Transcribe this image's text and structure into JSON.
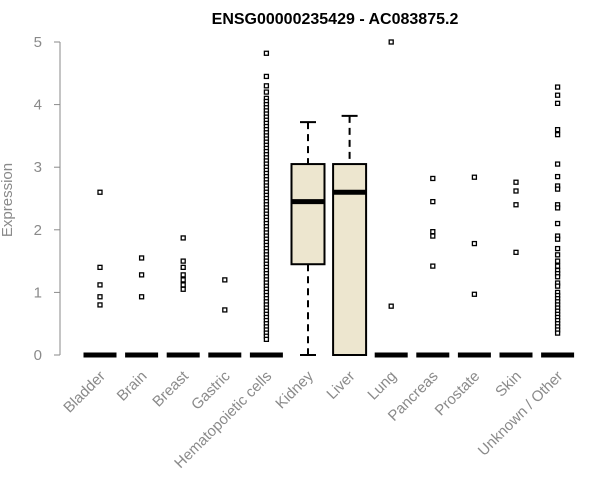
{
  "chart_data": {
    "type": "box",
    "title": "ENSG00000235429 - AC083875.2",
    "xlabel": "",
    "ylabel": "Expression",
    "ylim": [
      0,
      5
    ],
    "yticks": [
      0,
      1,
      2,
      3,
      4,
      5
    ],
    "categories": [
      "Bladder",
      "Brain",
      "Breast",
      "Gastric",
      "Hematopoietic cells",
      "Kidney",
      "Liver",
      "Lung",
      "Pancreas",
      "Prostate",
      "Skin",
      "Unknown / Other"
    ],
    "colors": {
      "box_fill": "#ede6cf",
      "stroke": "#000000",
      "axis": "#8a8a8a"
    },
    "boxes": [
      {
        "category": "Bladder",
        "q1": 0,
        "median": 0,
        "q3": 0,
        "whisker_low": 0,
        "whisker_high": 0,
        "outliers": [
          2.6,
          1.4,
          1.12,
          0.93,
          0.8
        ]
      },
      {
        "category": "Brain",
        "q1": 0,
        "median": 0,
        "q3": 0,
        "whisker_low": 0,
        "whisker_high": 0,
        "outliers": [
          1.55,
          1.28,
          0.93
        ]
      },
      {
        "category": "Breast",
        "q1": 0,
        "median": 0,
        "q3": 0,
        "whisker_low": 0,
        "whisker_high": 0,
        "outliers": [
          1.87,
          1.5,
          1.4,
          1.28,
          1.2,
          1.12,
          1.05
        ]
      },
      {
        "category": "Gastric",
        "q1": 0,
        "median": 0,
        "q3": 0,
        "whisker_low": 0,
        "whisker_high": 0,
        "outliers": [
          1.2,
          0.72
        ]
      },
      {
        "category": "Hematopoietic cells",
        "q1": 0,
        "median": 0,
        "q3": 0,
        "whisker_low": 0,
        "whisker_high": 0,
        "outliers": [
          4.82,
          4.45,
          4.3,
          4.2,
          4.1,
          4.05,
          4.0,
          3.95,
          3.9,
          3.85,
          3.8,
          3.75,
          3.7,
          3.65,
          3.6,
          3.55,
          3.5,
          3.45,
          3.4,
          3.35,
          3.3,
          3.25,
          3.2,
          3.15,
          3.1,
          3.05,
          3.0,
          2.95,
          2.9,
          2.85,
          2.8,
          2.75,
          2.7,
          2.65,
          2.6,
          2.55,
          2.5,
          2.45,
          2.4,
          2.35,
          2.3,
          2.25,
          2.2,
          2.15,
          2.1,
          2.05,
          2.0,
          1.95,
          1.9,
          1.85,
          1.8,
          1.75,
          1.7,
          1.65,
          1.6,
          1.55,
          1.5,
          1.45,
          1.4,
          1.35,
          1.3,
          1.25,
          1.2,
          1.15,
          1.1,
          1.05,
          1.0,
          0.95,
          0.9,
          0.85,
          0.8,
          0.75,
          0.7,
          0.65,
          0.6,
          0.55,
          0.5,
          0.45,
          0.4,
          0.35,
          0.3,
          0.25
        ]
      },
      {
        "category": "Kidney",
        "q1": 1.45,
        "median": 2.45,
        "q3": 3.05,
        "whisker_low": 0,
        "whisker_high": 3.72,
        "outliers": []
      },
      {
        "category": "Liver",
        "q1": 0,
        "median": 2.6,
        "q3": 3.05,
        "whisker_low": 0,
        "whisker_high": 3.82,
        "outliers": []
      },
      {
        "category": "Lung",
        "q1": 0,
        "median": 0,
        "q3": 0,
        "whisker_low": 0,
        "whisker_high": 0,
        "outliers": [
          5.0,
          0.78
        ]
      },
      {
        "category": "Pancreas",
        "q1": 0,
        "median": 0,
        "q3": 0,
        "whisker_low": 0,
        "whisker_high": 0,
        "outliers": [
          2.82,
          2.45,
          1.97,
          1.9,
          1.42
        ]
      },
      {
        "category": "Prostate",
        "q1": 0,
        "median": 0,
        "q3": 0,
        "whisker_low": 0,
        "whisker_high": 0,
        "outliers": [
          2.84,
          1.78,
          0.97
        ]
      },
      {
        "category": "Skin",
        "q1": 0,
        "median": 0,
        "q3": 0,
        "whisker_low": 0,
        "whisker_high": 0,
        "outliers": [
          2.76,
          2.62,
          2.4,
          1.64
        ]
      },
      {
        "category": "Unknown / Other",
        "q1": 0,
        "median": 0,
        "q3": 0,
        "whisker_low": 0,
        "whisker_high": 0,
        "outliers": [
          4.28,
          4.15,
          4.02,
          3.6,
          3.52,
          3.05,
          2.85,
          2.7,
          2.65,
          2.4,
          2.35,
          2.1,
          1.9,
          1.85,
          1.7,
          1.6,
          1.5,
          1.42,
          1.35,
          1.3,
          1.25,
          1.15,
          1.1,
          1.0,
          0.95,
          0.9,
          0.85,
          0.8,
          0.75,
          0.7,
          0.65,
          0.6,
          0.55,
          0.5,
          0.45,
          0.4,
          0.35
        ]
      }
    ]
  }
}
